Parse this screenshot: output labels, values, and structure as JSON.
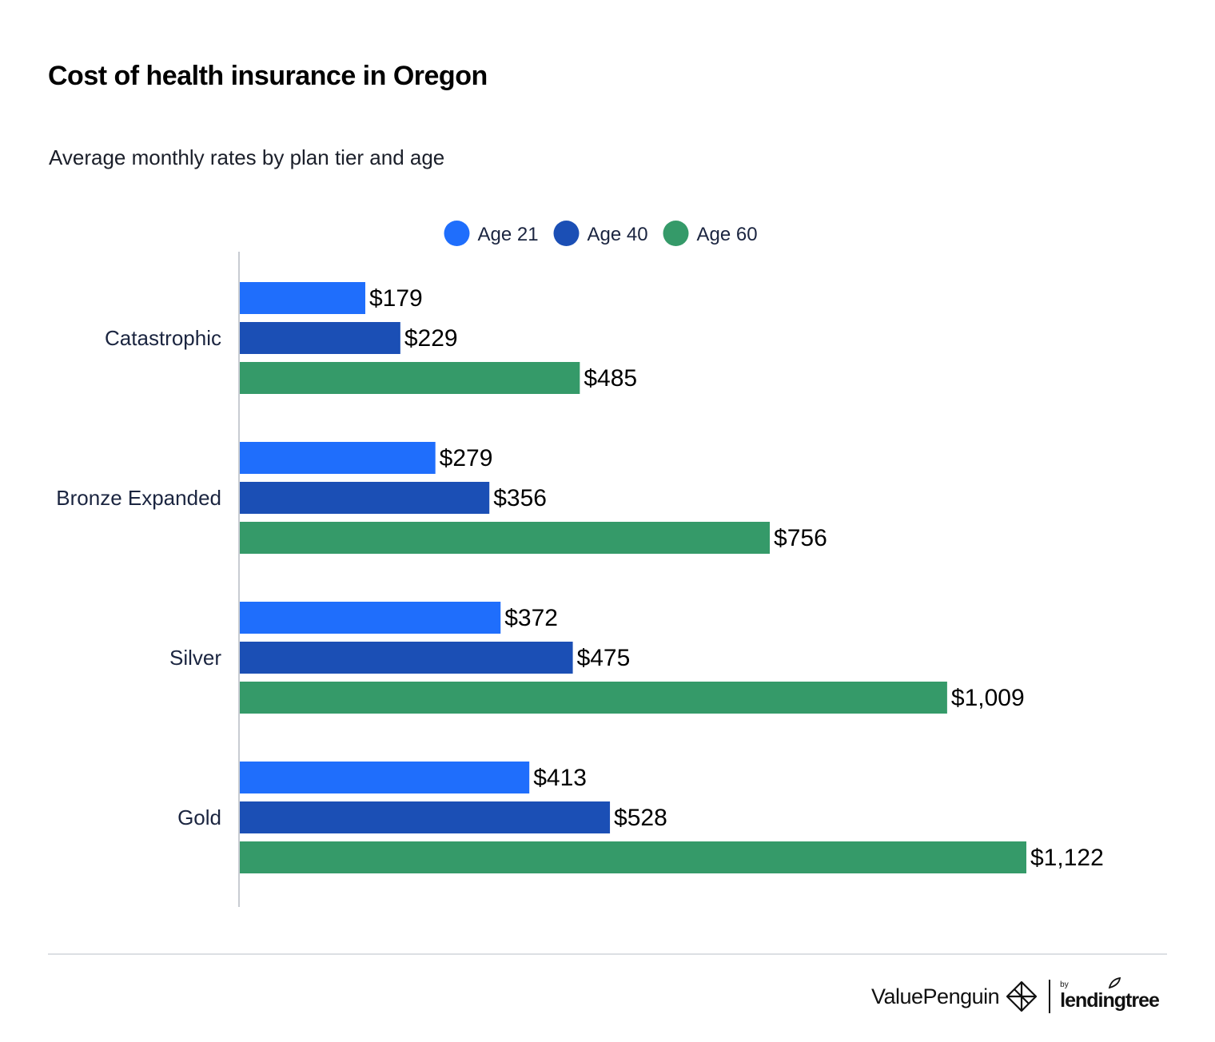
{
  "title": "Cost of health insurance in Oregon",
  "subtitle": "Average monthly rates by plan tier and age",
  "chart_data": {
    "type": "bar",
    "orientation": "horizontal",
    "categories": [
      "Catastrophic",
      "Bronze Expanded",
      "Silver",
      "Gold"
    ],
    "series": [
      {
        "name": "Age 21",
        "color": "#1f6efc",
        "values": [
          179,
          279,
          372,
          413
        ],
        "labels": [
          "$179",
          "$279",
          "$372",
          "$413"
        ]
      },
      {
        "name": "Age 40",
        "color": "#1b4fb5",
        "values": [
          229,
          356,
          475,
          528
        ],
        "labels": [
          "$229",
          "$356",
          "$475",
          "$528"
        ]
      },
      {
        "name": "Age 60",
        "color": "#359a69",
        "values": [
          485,
          756,
          1009,
          1122
        ],
        "labels": [
          "$485",
          "$756",
          "$1,009",
          "$1,122"
        ]
      }
    ],
    "legend_position": "top-center",
    "grid": false,
    "xlim": [
      0,
      1122
    ]
  },
  "brand": {
    "name": "ValuePenguin",
    "by": "by",
    "partner": "lendingtree",
    "icon": "valuepenguin-logo-icon"
  }
}
